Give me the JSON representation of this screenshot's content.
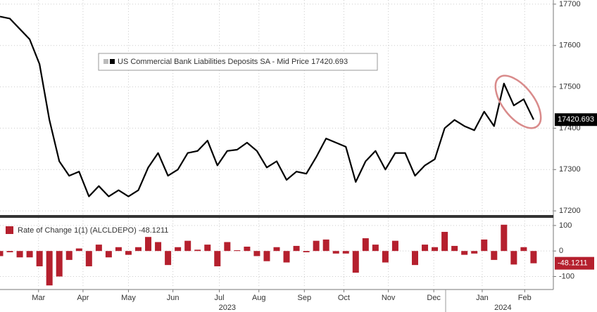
{
  "chart_data": [
    {
      "type": "line",
      "series": [
        {
          "name": "US Commercial Bank Liabilities Deposits SA - Mid Price",
          "color": "#000000",
          "values": [
            17670,
            17665,
            17640,
            17615,
            17555,
            17420,
            17320,
            17285,
            17295,
            17235,
            17260,
            17235,
            17250,
            17235,
            17250,
            17305,
            17340,
            17285,
            17300,
            17340,
            17345,
            17370,
            17310,
            17345,
            17348,
            17365,
            17345,
            17305,
            17320,
            17275,
            17295,
            17290,
            17330,
            17375,
            17365,
            17355,
            17270,
            17320,
            17345,
            17300,
            17340,
            17340,
            17285,
            17310,
            17325,
            17400,
            17420,
            17405,
            17395,
            17440,
            17405,
            17508,
            17455,
            17470,
            17420.693
          ]
        }
      ],
      "xlim": [
        0,
        56
      ],
      "ylim": [
        17190,
        17710
      ],
      "yticks": [
        17200,
        17300,
        17400,
        17500,
        17600,
        17700
      ],
      "grid": true
    },
    {
      "type": "bar",
      "series": [
        {
          "name": "Rate of Change 1(1) (ALCLDEPO)",
          "color": "#b5202e",
          "values": [
            -20,
            -5,
            -25,
            -25,
            -60,
            -135,
            -100,
            -35,
            10,
            -60,
            25,
            -25,
            15,
            -15,
            15,
            55,
            35,
            -55,
            15,
            40,
            5,
            25,
            -60,
            35,
            3,
            17,
            -20,
            -40,
            15,
            -45,
            20,
            -5,
            40,
            45,
            -10,
            -10,
            -85,
            50,
            25,
            -45,
            40,
            0,
            -55,
            25,
            15,
            75,
            20,
            -15,
            -10,
            45,
            -35,
            103,
            -53,
            15,
            -48.1211
          ]
        }
      ],
      "xlim": [
        0,
        56
      ],
      "ylim": [
        -140,
        130
      ],
      "yticks": [
        -100,
        0,
        100
      ],
      "xticks": [
        {
          "value": 3.9,
          "label": "Mar"
        },
        {
          "value": 8.4,
          "label": "Apr"
        },
        {
          "value": 13.0,
          "label": "May"
        },
        {
          "value": 17.5,
          "label": "Jun"
        },
        {
          "value": 22.2,
          "label": "Jul"
        },
        {
          "value": 26.2,
          "label": "Aug"
        },
        {
          "value": 30.8,
          "label": "Sep"
        },
        {
          "value": 34.8,
          "label": "Oct"
        },
        {
          "value": 39.3,
          "label": "Nov"
        },
        {
          "value": 43.9,
          "label": "Dec"
        },
        {
          "value": 48.8,
          "label": "Jan"
        },
        {
          "value": 53.1,
          "label": "Feb"
        }
      ],
      "year_ticks": [
        {
          "value": 23.0,
          "label": "2023"
        },
        {
          "value": 50.9,
          "label": "2024"
        }
      ],
      "grid": true
    }
  ]
}
